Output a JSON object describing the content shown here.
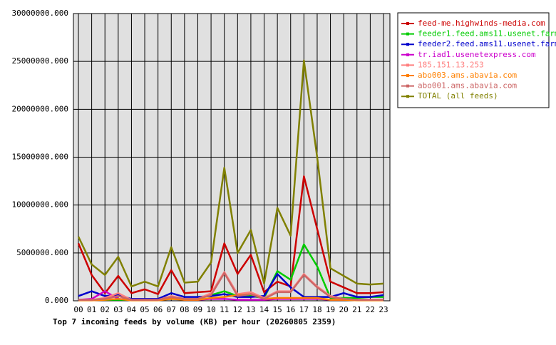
{
  "chart_data": {
    "type": "line",
    "title": "Top 7 incoming feeds by volume (KB) per hour (20260805 2359)",
    "categories": [
      "00",
      "01",
      "02",
      "03",
      "04",
      "05",
      "06",
      "07",
      "08",
      "09",
      "10",
      "11",
      "12",
      "13",
      "14",
      "15",
      "16",
      "17",
      "18",
      "19",
      "20",
      "21",
      "22",
      "23"
    ],
    "ylim": [
      0,
      30000000
    ],
    "yticks": [
      {
        "value": 0,
        "label": "0.000"
      },
      {
        "value": 5000000,
        "label": "5000000.000"
      },
      {
        "value": 10000000,
        "label": "10000000.000"
      },
      {
        "value": 15000000,
        "label": "15000000.000"
      },
      {
        "value": 20000000,
        "label": "20000000.000"
      },
      {
        "value": 25000000,
        "label": "25000000.000"
      },
      {
        "value": 30000000,
        "label": "30000000.000"
      }
    ],
    "grid": true,
    "series": [
      {
        "name": "feed-me.highwinds-media.com",
        "color": "#cc0000",
        "values": [
          6000000,
          2700000,
          800000,
          2600000,
          800000,
          1200000,
          700000,
          3200000,
          800000,
          900000,
          1000000,
          6000000,
          2800000,
          4800000,
          900000,
          2000000,
          1500000,
          13000000,
          7500000,
          2000000,
          1400000,
          800000,
          800000,
          900000
        ]
      },
      {
        "name": "feeder1.feed.ams11.usenet.farm",
        "color": "#00cc00",
        "values": [
          100000,
          100000,
          100000,
          100000,
          100000,
          100000,
          100000,
          200000,
          200000,
          200000,
          600000,
          1000000,
          500000,
          500000,
          300000,
          3100000,
          2200000,
          5900000,
          3600000,
          300000,
          300000,
          300000,
          400000,
          400000
        ]
      },
      {
        "name": "feeder2.feed.ams11.usenet.farm",
        "color": "#0000cc",
        "values": [
          500000,
          1000000,
          500000,
          600000,
          200000,
          200000,
          200000,
          800000,
          400000,
          400000,
          500000,
          700000,
          400000,
          400000,
          500000,
          2800000,
          1400000,
          400000,
          400000,
          400000,
          800000,
          400000,
          400000,
          600000
        ]
      },
      {
        "name": "tr.iad1.usenetexpress.com",
        "color": "#cc00cc",
        "values": [
          100000,
          200000,
          1000000,
          200000,
          100000,
          100000,
          100000,
          300000,
          100000,
          100000,
          200000,
          200000,
          100000,
          100000,
          100000,
          200000,
          200000,
          200000,
          200000,
          100000,
          100000,
          100000,
          100000,
          100000
        ]
      },
      {
        "name": "185.151.13.253",
        "color": "#ff8080",
        "values": [
          100000,
          100000,
          300000,
          800000,
          100000,
          100000,
          100000,
          500000,
          200000,
          200000,
          800000,
          3000000,
          700000,
          900000,
          300000,
          1000000,
          1000000,
          2800000,
          1500000,
          500000,
          200000,
          100000,
          100000,
          100000
        ]
      },
      {
        "name": "abo003.ams.abavia.com",
        "color": "#ff8000",
        "values": [
          50000,
          50000,
          100000,
          200000,
          50000,
          50000,
          50000,
          200000,
          100000,
          100000,
          300000,
          400000,
          600000,
          700000,
          200000,
          300000,
          300000,
          300000,
          300000,
          100000,
          100000,
          50000,
          50000,
          50000
        ]
      },
      {
        "name": "abo001.ams.abavia.com",
        "color": "#cc6666",
        "values": [
          100000,
          100000,
          200000,
          500000,
          100000,
          100000,
          100000,
          400000,
          200000,
          200000,
          600000,
          2900000,
          500000,
          700000,
          200000,
          900000,
          900000,
          2700000,
          1400000,
          400000,
          200000,
          100000,
          100000,
          100000
        ]
      },
      {
        "name": "TOTAL (all feeds)",
        "color": "#808000",
        "values": [
          6700000,
          3800000,
          2700000,
          4600000,
          1500000,
          2000000,
          1500000,
          5600000,
          1900000,
          2000000,
          4000000,
          13900000,
          5000000,
          7400000,
          1800000,
          9700000,
          6800000,
          25100000,
          15000000,
          3400000,
          2600000,
          1800000,
          1700000,
          1800000
        ]
      }
    ]
  }
}
